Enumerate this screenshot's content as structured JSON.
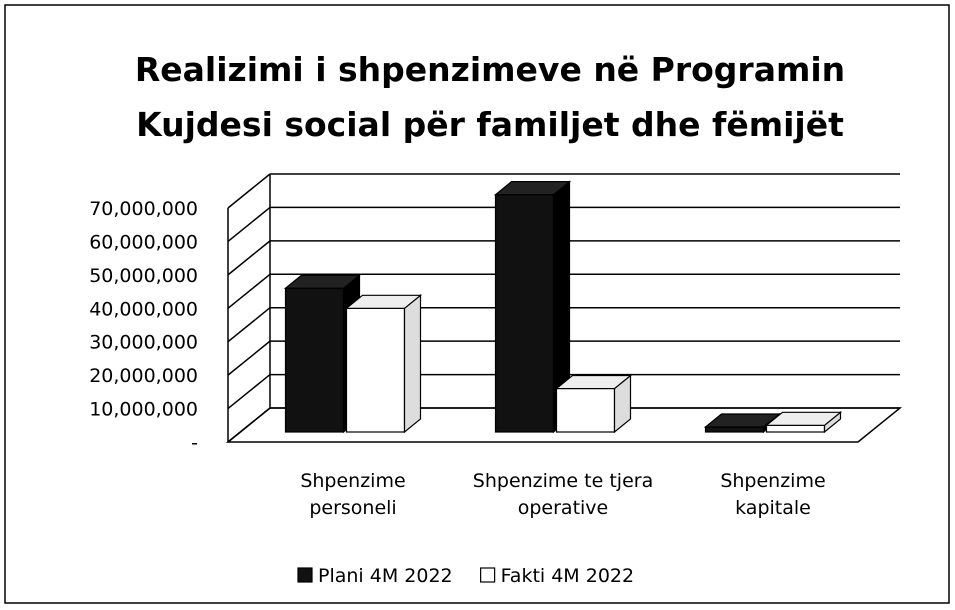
{
  "chart_data": {
    "type": "bar3d",
    "title": "Realizimi i shpenzimeve në Programin Kujdesi social për familjet dhe fëmijët",
    "categories": [
      "Shpenzime personeli",
      "Shpenzime te tjera operative",
      "Shpenzime kapitale"
    ],
    "series": [
      {
        "name": "Plani 4M 2022",
        "color": "#111111",
        "values": [
          43000000,
          71000000,
          1500000
        ]
      },
      {
        "name": "Fakti 4M 2022",
        "color": "#ffffff",
        "values": [
          37000000,
          13000000,
          2000000
        ]
      }
    ],
    "ylim": [
      0,
      70000000
    ],
    "yticks": [
      {
        "value": 0,
        "label": "-"
      },
      {
        "value": 10000000,
        "label": "10,000,000"
      },
      {
        "value": 20000000,
        "label": "20,000,000"
      },
      {
        "value": 30000000,
        "label": "30,000,000"
      },
      {
        "value": 40000000,
        "label": "40,000,000"
      },
      {
        "value": 50000000,
        "label": "50,000,000"
      },
      {
        "value": 60000000,
        "label": "60,000,000"
      },
      {
        "value": 70000000,
        "label": "70,000,000"
      }
    ],
    "grid": true,
    "legend": "bottom"
  }
}
